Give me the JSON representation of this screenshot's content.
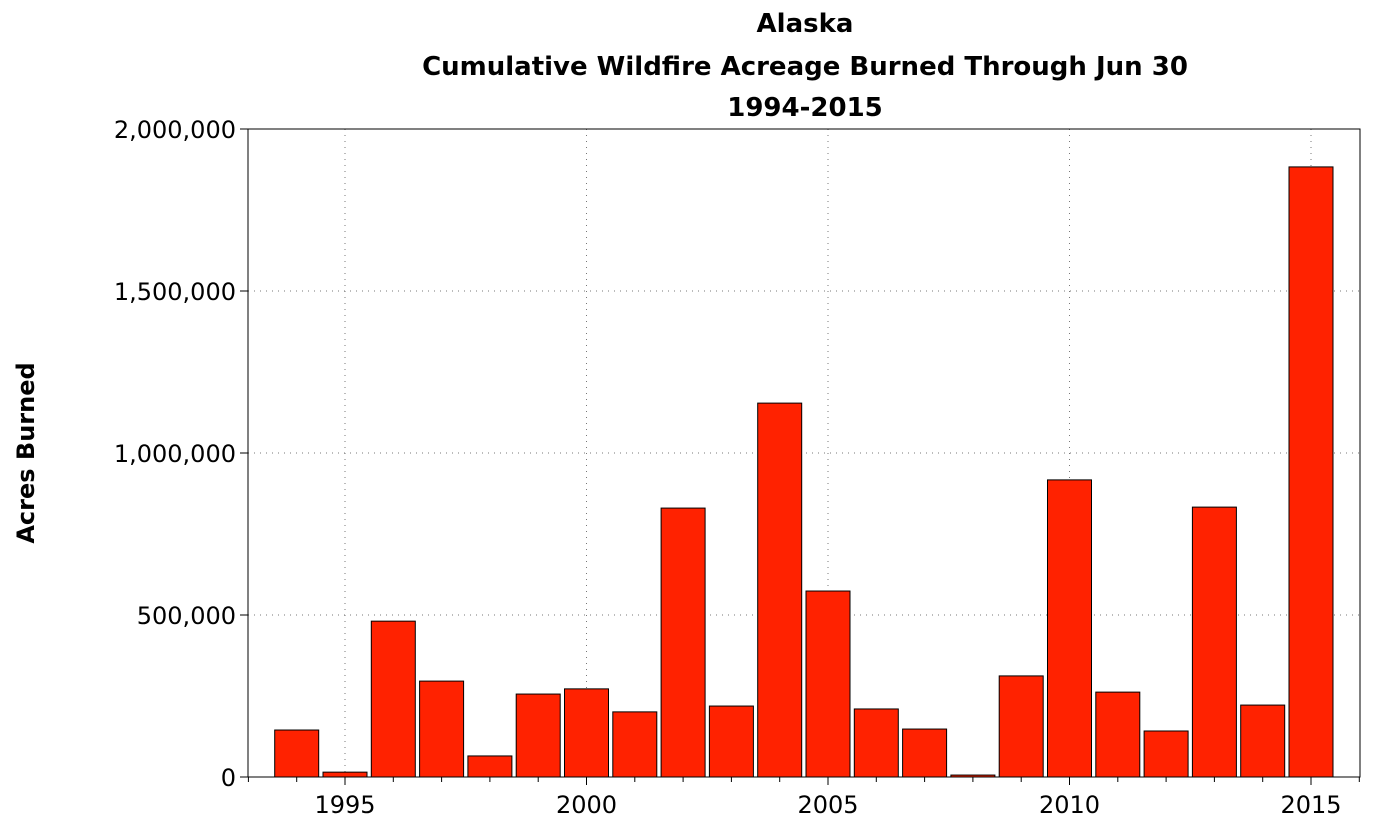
{
  "chart_data": {
    "type": "bar",
    "title": [
      "Alaska",
      "Cumulative Wildfire Acreage Burned Through Jun 30",
      "1994-2015"
    ],
    "xlabel": "",
    "ylabel": "Acres Burned",
    "x": [
      1994,
      1995,
      1996,
      1997,
      1998,
      1999,
      2000,
      2001,
      2002,
      2003,
      2004,
      2005,
      2006,
      2007,
      2008,
      2009,
      2010,
      2011,
      2012,
      2013,
      2014,
      2015
    ],
    "values": [
      145000,
      15000,
      481000,
      296000,
      65000,
      256000,
      272000,
      201000,
      830000,
      219000,
      1154000,
      574000,
      210000,
      148000,
      6000,
      312000,
      917000,
      262000,
      142000,
      833000,
      222000,
      1883000
    ],
    "ylim": [
      0,
      2000000
    ],
    "xlim": [
      1992.0,
      2016.0
    ],
    "yticks": [
      0,
      500000,
      1000000,
      1500000,
      2000000
    ],
    "ytick_labels": [
      "0",
      "500,000",
      "1,000,000",
      "1,500,000",
      "2,000,000"
    ],
    "xticks": [
      1995,
      2000,
      2005,
      2010,
      2015
    ],
    "xtick_labels": [
      "1995",
      "2000",
      "2005",
      "2010",
      "2015"
    ],
    "grid": true,
    "bar_color": "#ff2200"
  }
}
